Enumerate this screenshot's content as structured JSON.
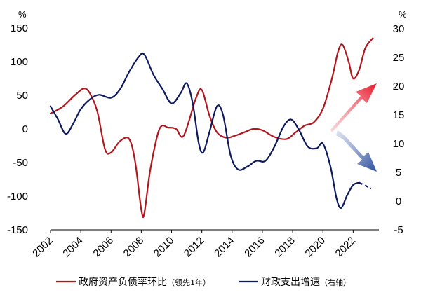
{
  "chart_data": {
    "type": "line",
    "left_axis": {
      "unit": "%",
      "ticks": [
        150,
        100,
        50,
        0,
        -50,
        -100,
        -150
      ],
      "range": [
        -150,
        150
      ]
    },
    "right_axis": {
      "unit": "%",
      "ticks": [
        30,
        25,
        20,
        15,
        10,
        5,
        0,
        -5
      ],
      "range": [
        -5,
        30
      ]
    },
    "x_ticks": [
      "2002",
      "2004",
      "2006",
      "2008",
      "2010",
      "2012",
      "2014",
      "2016",
      "2018",
      "2020",
      "2022"
    ],
    "x_range": [
      2002,
      2023.7
    ],
    "series": [
      {
        "name": "政府资产负债率环比",
        "note": "（领先1年）",
        "axis": "left",
        "color": "#b0171f",
        "points": [
          [
            2002.0,
            23
          ],
          [
            2002.8,
            33
          ],
          [
            2003.6,
            50
          ],
          [
            2004.2,
            60
          ],
          [
            2004.6,
            53
          ],
          [
            2005.1,
            25
          ],
          [
            2005.6,
            -30
          ],
          [
            2006.0,
            -35
          ],
          [
            2006.6,
            -18
          ],
          [
            2007.2,
            -15
          ],
          [
            2007.6,
            -50
          ],
          [
            2008.0,
            -120
          ],
          [
            2008.2,
            -125
          ],
          [
            2008.6,
            -60
          ],
          [
            2009.2,
            0
          ],
          [
            2009.8,
            2
          ],
          [
            2010.3,
            0
          ],
          [
            2010.8,
            -10
          ],
          [
            2011.6,
            45
          ],
          [
            2012.0,
            58
          ],
          [
            2012.5,
            20
          ],
          [
            2013.0,
            -5
          ],
          [
            2013.6,
            -13
          ],
          [
            2014.2,
            -10
          ],
          [
            2014.8,
            -5
          ],
          [
            2015.4,
            0
          ],
          [
            2016.0,
            -2
          ],
          [
            2016.8,
            -12
          ],
          [
            2017.6,
            -15
          ],
          [
            2018.2,
            -5
          ],
          [
            2018.8,
            5
          ],
          [
            2019.4,
            10
          ],
          [
            2020.0,
            30
          ],
          [
            2020.6,
            75
          ],
          [
            2021.0,
            115
          ],
          [
            2021.3,
            125
          ],
          [
            2021.7,
            100
          ],
          [
            2022.0,
            75
          ],
          [
            2022.4,
            88
          ],
          [
            2022.8,
            120
          ],
          [
            2023.3,
            135
          ]
        ]
      },
      {
        "name": "财政支出增速",
        "note": "（右轴）",
        "axis": "right",
        "color": "#0e1a5e",
        "points": [
          [
            2002.0,
            16.5
          ],
          [
            2002.5,
            14.2
          ],
          [
            2003.0,
            11.7
          ],
          [
            2003.5,
            13.5
          ],
          [
            2004.0,
            16.0
          ],
          [
            2004.6,
            17.7
          ],
          [
            2005.2,
            18.5
          ],
          [
            2006.0,
            18.0
          ],
          [
            2006.6,
            19.5
          ],
          [
            2007.2,
            22.5
          ],
          [
            2007.8,
            25.0
          ],
          [
            2008.2,
            25.5
          ],
          [
            2008.8,
            22.0
          ],
          [
            2009.4,
            19.5
          ],
          [
            2010.0,
            17.0
          ],
          [
            2010.6,
            18.8
          ],
          [
            2011.0,
            20.5
          ],
          [
            2011.4,
            17.0
          ],
          [
            2011.8,
            10.0
          ],
          [
            2012.1,
            8.5
          ],
          [
            2012.5,
            12.0
          ],
          [
            2013.0,
            16.5
          ],
          [
            2013.4,
            15.0
          ],
          [
            2013.9,
            8.0
          ],
          [
            2014.4,
            5.5
          ],
          [
            2015.0,
            6.0
          ],
          [
            2015.6,
            7.0
          ],
          [
            2016.2,
            7.0
          ],
          [
            2016.8,
            9.5
          ],
          [
            2017.4,
            13.0
          ],
          [
            2017.9,
            14.2
          ],
          [
            2018.4,
            12.5
          ],
          [
            2019.0,
            9.5
          ],
          [
            2019.6,
            9.2
          ],
          [
            2020.0,
            10.0
          ],
          [
            2020.5,
            6.0
          ],
          [
            2020.9,
            0.5
          ],
          [
            2021.2,
            -1.2
          ],
          [
            2021.6,
            1.0
          ],
          [
            2022.0,
            2.8
          ],
          [
            2022.4,
            3.2
          ]
        ],
        "dashed_points": [
          [
            2022.4,
            3.2
          ],
          [
            2023.2,
            2.2
          ]
        ]
      }
    ],
    "arrows": [
      {
        "name": "up-arrow",
        "direction": "up-right",
        "color": "#e8192c"
      },
      {
        "name": "down-arrow",
        "direction": "down-right",
        "color": "#274a9b"
      }
    ],
    "legend_position": "bottom",
    "grid": false
  }
}
